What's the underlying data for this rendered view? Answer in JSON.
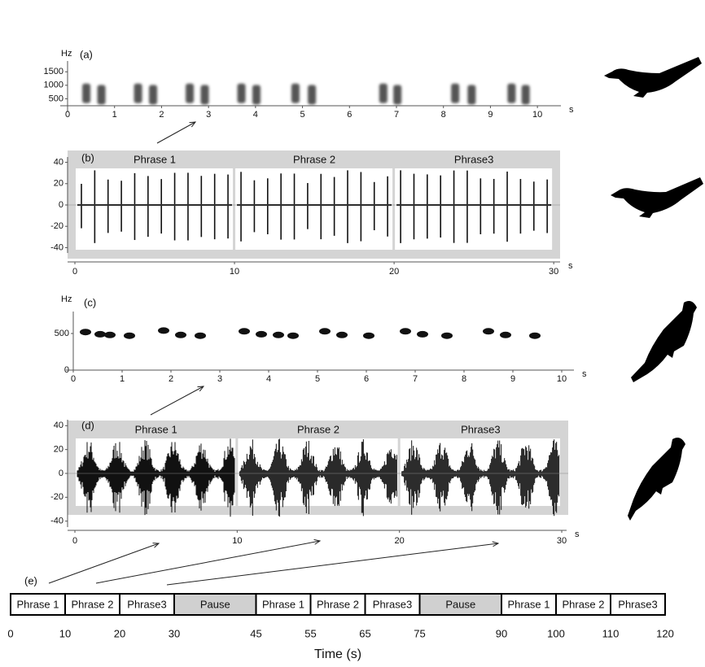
{
  "chart_data": [
    {
      "type": "spectrogram",
      "panel_label": "(a)",
      "ylabel": "Hz",
      "xlabel": "s",
      "xlim": [
        0,
        10.5
      ],
      "ylim": [
        0,
        1900
      ],
      "xticks": [
        0,
        1,
        2,
        3,
        4,
        5,
        6,
        7,
        8,
        9,
        10
      ],
      "yticks": [
        500,
        1000,
        1500
      ],
      "color": "#555555",
      "syllables": {
        "x": [
          0.4,
          0.72,
          1.5,
          1.82,
          2.6,
          2.92,
          3.7,
          4.02,
          4.85,
          5.2,
          6.72,
          7.02,
          8.25,
          8.6,
          9.45,
          9.75
        ],
        "y": [
          700,
          650,
          700,
          650,
          700,
          650,
          700,
          650,
          700,
          650,
          700,
          650,
          700,
          650,
          700,
          650
        ]
      }
    },
    {
      "type": "waveform",
      "panel_label": "(b)",
      "xlabel": "s",
      "xlim": [
        0,
        30.4
      ],
      "ylim": [
        -45,
        45
      ],
      "xticks": [
        0,
        10,
        20,
        30
      ],
      "yticks": [
        -40,
        -20,
        0,
        20,
        40
      ],
      "phrases": [
        {
          "label": "Phrase 1",
          "start": 0,
          "end": 10
        },
        {
          "label": "Phrase 2",
          "start": 10,
          "end": 20
        },
        {
          "label": "Phrase3",
          "start": 20,
          "end": 30
        }
      ]
    },
    {
      "type": "spectrogram",
      "panel_label": "(c)",
      "ylabel": "Hz",
      "xlabel": "s",
      "xlim": [
        0,
        10.25
      ],
      "ylim": [
        0,
        800
      ],
      "xticks": [
        0,
        1,
        2,
        3,
        4,
        5,
        6,
        7,
        8,
        9,
        10
      ],
      "yticks": [
        0,
        500
      ],
      "color": "#111111",
      "syllables": {
        "x": [
          0.25,
          0.55,
          0.75,
          1.15,
          1.85,
          2.2,
          2.6,
          3.5,
          3.85,
          4.2,
          4.5,
          5.15,
          5.5,
          6.05,
          6.8,
          7.15,
          7.65,
          8.5,
          8.85,
          9.45
        ],
        "y": [
          520,
          490,
          480,
          470,
          540,
          480,
          470,
          530,
          490,
          480,
          470,
          530,
          480,
          470,
          530,
          490,
          470,
          530,
          480,
          470
        ]
      }
    },
    {
      "type": "waveform",
      "panel_label": "(d)",
      "xlabel": "s",
      "xlim": [
        0,
        30.3
      ],
      "ylim": [
        -45,
        45
      ],
      "xticks": [
        0,
        10,
        20,
        30
      ],
      "yticks": [
        -40,
        -20,
        0,
        20,
        40
      ],
      "phrases": [
        {
          "label": "Phrase 1",
          "start": 0,
          "end": 10
        },
        {
          "label": "Phrase 2",
          "start": 10,
          "end": 20
        },
        {
          "label": "Phrase3",
          "start": 20,
          "end": 30
        }
      ]
    },
    {
      "type": "timeline",
      "panel_label": "(e)",
      "xlabel": "Time (s)",
      "xlim": [
        0,
        120
      ],
      "xticks": [
        0,
        10,
        20,
        30,
        45,
        55,
        65,
        75,
        90,
        100,
        110,
        120
      ],
      "segments": [
        {
          "label": "Phrase 1",
          "start": 0,
          "end": 10,
          "color": "#ffffff"
        },
        {
          "label": "Phrase 2",
          "start": 10,
          "end": 20,
          "color": "#ffffff"
        },
        {
          "label": "Phrase3",
          "start": 20,
          "end": 30,
          "color": "#ffffff"
        },
        {
          "label": "Pause",
          "start": 30,
          "end": 45,
          "color": "#d0d0d0"
        },
        {
          "label": "Phrase 1",
          "start": 45,
          "end": 55,
          "color": "#ffffff"
        },
        {
          "label": "Phrase 2",
          "start": 55,
          "end": 65,
          "color": "#ffffff"
        },
        {
          "label": "Phrase3",
          "start": 65,
          "end": 75,
          "color": "#ffffff"
        },
        {
          "label": "Pause",
          "start": 75,
          "end": 90,
          "color": "#d0d0d0"
        },
        {
          "label": "Phrase 1",
          "start": 90,
          "end": 100,
          "color": "#ffffff"
        },
        {
          "label": "Phrase 2",
          "start": 100,
          "end": 110,
          "color": "#ffffff"
        },
        {
          "label": "Phrase3",
          "start": 110,
          "end": 120,
          "color": "#ffffff"
        }
      ]
    }
  ]
}
